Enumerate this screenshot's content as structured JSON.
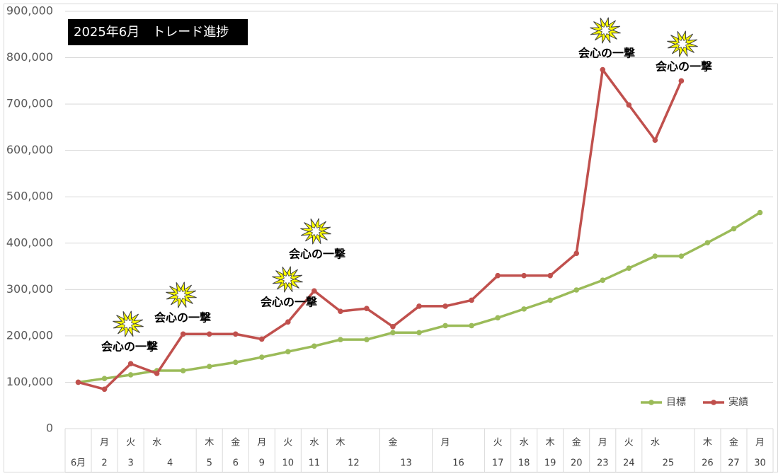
{
  "chart_data": {
    "type": "line",
    "title": "2025年6月　トレード進捗",
    "weekdays": [
      null,
      "月",
      "火",
      "水",
      null,
      "木",
      "金",
      "月",
      "火",
      "水",
      "木",
      null,
      "金",
      null,
      "月",
      null,
      "火",
      "水",
      "木",
      "金",
      "月",
      "火",
      "水",
      null,
      "木",
      "金",
      "月"
    ],
    "categories": [
      "6月",
      "2",
      "3",
      "4",
      null,
      "5",
      "6",
      "9",
      "10",
      "11",
      "12",
      null,
      "13",
      null,
      "16",
      null,
      "17",
      "18",
      "19",
      "20",
      "23",
      "24",
      "25",
      null,
      "26",
      "27",
      "30"
    ],
    "series": [
      {
        "name": "目標",
        "color": "#9bbb59",
        "values": [
          100000,
          108000,
          116000,
          125000,
          125000,
          134000,
          143000,
          154000,
          166000,
          178000,
          192000,
          192000,
          207000,
          207000,
          222000,
          222000,
          239000,
          258000,
          277000,
          299000,
          320000,
          346000,
          372000,
          372000,
          401000,
          431000,
          466000
        ]
      },
      {
        "name": "実績",
        "color": "#c0504d",
        "values": [
          100000,
          85000,
          140000,
          119000,
          204000,
          204000,
          204000,
          193000,
          230000,
          297000,
          253000,
          259000,
          220000,
          264000,
          264000,
          277000,
          330000,
          330000,
          330000,
          378000,
          774000,
          698000,
          622000,
          750000,
          null,
          null,
          null
        ]
      }
    ],
    "annotations": [
      "会心の一撃",
      "会心の一撃",
      "会心の一撃",
      "会心の一撃",
      "会心の一撃",
      "会心の一撃"
    ],
    "ylim": [
      0,
      900000
    ],
    "yticks": [
      0,
      {
        "value": 100000,
        "label": "100,000"
      },
      {
        "value": 200000,
        "label": "200,000"
      },
      {
        "value": 300000,
        "label": "300,000"
      },
      {
        "value": 400000,
        "label": "400,000"
      },
      {
        "value": 500000,
        "label": "500,000"
      },
      {
        "value": 600000,
        "label": "600,000"
      },
      {
        "value": 700000,
        "label": "700,000"
      },
      {
        "value": 800000,
        "label": "800,000"
      },
      {
        "value": 900000,
        "label": "900,000"
      }
    ],
    "grid": true,
    "legend": "lower right"
  }
}
